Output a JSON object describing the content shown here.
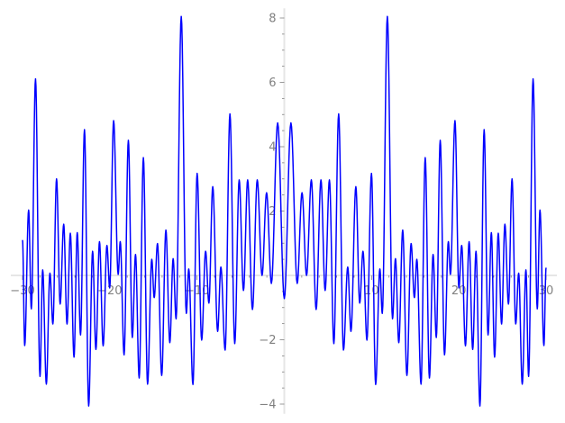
{
  "chart_data": {
    "type": "line",
    "title": "",
    "xlabel": "",
    "ylabel": "",
    "xlim": [
      -30,
      30
    ],
    "ylim": [
      -4.3,
      8.3
    ],
    "grid": false,
    "axes_through_origin": true,
    "line_color": "#0000ff",
    "axis_color": "#e6e6e6",
    "tick_label_color": "#808080",
    "x_ticks": [
      -30,
      -20,
      -10,
      10,
      20,
      30
    ],
    "x_tick_labels": [
      "−30",
      "−20",
      "−10",
      "10",
      "20",
      "30"
    ],
    "y_ticks": [
      -4,
      -2,
      2,
      4,
      6,
      8
    ],
    "y_tick_labels": [
      "−4",
      "−2",
      "2",
      "4",
      "6",
      "8"
    ],
    "series": [
      {
        "x": [
          -30,
          -29.75,
          -29.3,
          -28.99,
          -28.51,
          -28.0,
          -27.69,
          -27.27,
          -26.86,
          -26.52,
          -26.1,
          -25.69,
          -25.28,
          -24.9,
          -24.52,
          -24.1,
          -23.73,
          -23.35,
          -22.9,
          -22.42,
          -21.97,
          -21.59,
          -21.18,
          -20.76,
          -20.33,
          -20.01,
          -19.56,
          -19.04,
          -18.8,
          -18.36,
          -17.87,
          -17.42,
          -17.05,
          -16.63,
          -16.15,
          -15.67,
          -15.19,
          -14.91,
          -14.53,
          -14.05,
          -13.57,
          -13.12,
          -12.74,
          -12.4,
          -11.81,
          -11.23,
          -10.95,
          -10.47,
          -9.99,
          -9.47,
          -9.02,
          -8.64,
          -8.2,
          -7.64,
          -7.27,
          -6.78,
          -6.23,
          -5.68,
          -5.17,
          -4.68,
          -4.2,
          -3.65,
          -3.1,
          -2.55,
          -2.03,
          -1.48,
          -0.76,
          0,
          0.76,
          1.48,
          2.03,
          2.55,
          3.1,
          3.65,
          4.2,
          4.68,
          5.17,
          5.68,
          6.23,
          6.78,
          7.27,
          7.64,
          8.2,
          8.64,
          9.02,
          9.47,
          9.99,
          10.47,
          10.95,
          11.23,
          11.81,
          12.4,
          12.74,
          13.12,
          13.57,
          14.05,
          14.53,
          14.91,
          15.19,
          15.67,
          16.15,
          16.63,
          17.05,
          17.42,
          17.87,
          18.36,
          18.8,
          19.04,
          19.56,
          20.01,
          20.33,
          20.76,
          21.18,
          21.59,
          21.97,
          22.42,
          22.9,
          23.35,
          23.73,
          24.1,
          24.52,
          24.9,
          25.28,
          25.69,
          26.1,
          26.52,
          26.86,
          27.27,
          27.69,
          28.0,
          28.51,
          28.99,
          29.3,
          29.75,
          30
        ],
        "y": [
          1.1,
          -2.18,
          2.03,
          -1.04,
          6.11,
          -3.14,
          0.17,
          -3.38,
          0.07,
          -1.51,
          3.0,
          -0.89,
          1.59,
          -1.51,
          1.31,
          -2.54,
          1.33,
          -1.85,
          4.53,
          -4.06,
          0.75,
          -2.3,
          1.05,
          -2.19,
          0.93,
          -0.39,
          4.81,
          0.03,
          1.05,
          -2.47,
          4.2,
          -1.93,
          0.65,
          -3.19,
          3.66,
          -3.38,
          0.5,
          -0.69,
          0.99,
          -3.11,
          1.41,
          -2.09,
          0.52,
          -1.35,
          8.05,
          -1.18,
          0.2,
          -3.39,
          3.17,
          -2.01,
          0.75,
          -0.86,
          2.76,
          -1.74,
          0.26,
          -2.32,
          5.02,
          -2.12,
          2.97,
          -0.47,
          2.97,
          -1.06,
          2.97,
          0,
          2.57,
          -0.25,
          4.74,
          -0.72,
          4.74,
          -0.25,
          2.57,
          0,
          2.97,
          -1.06,
          2.97,
          -0.47,
          2.97,
          -2.12,
          5.02,
          -2.32,
          0.26,
          -1.74,
          2.76,
          -0.86,
          0.75,
          -2.01,
          3.17,
          -3.39,
          0.2,
          -1.18,
          8.05,
          -1.35,
          0.52,
          -2.09,
          1.41,
          -3.11,
          0.99,
          -0.69,
          0.5,
          -3.38,
          3.66,
          -3.19,
          0.65,
          -1.93,
          4.2,
          -2.47,
          1.05,
          0.03,
          4.81,
          -0.39,
          0.93,
          -2.19,
          1.05,
          -2.3,
          0.75,
          -4.06,
          4.53,
          -1.85,
          1.33,
          -2.54,
          1.31,
          -1.51,
          1.59,
          -0.89,
          3.0,
          -1.51,
          0.07,
          -3.38,
          0.17,
          -3.14,
          6.11,
          -1.04,
          2.03,
          -2.18,
          0.24
        ]
      }
    ]
  }
}
